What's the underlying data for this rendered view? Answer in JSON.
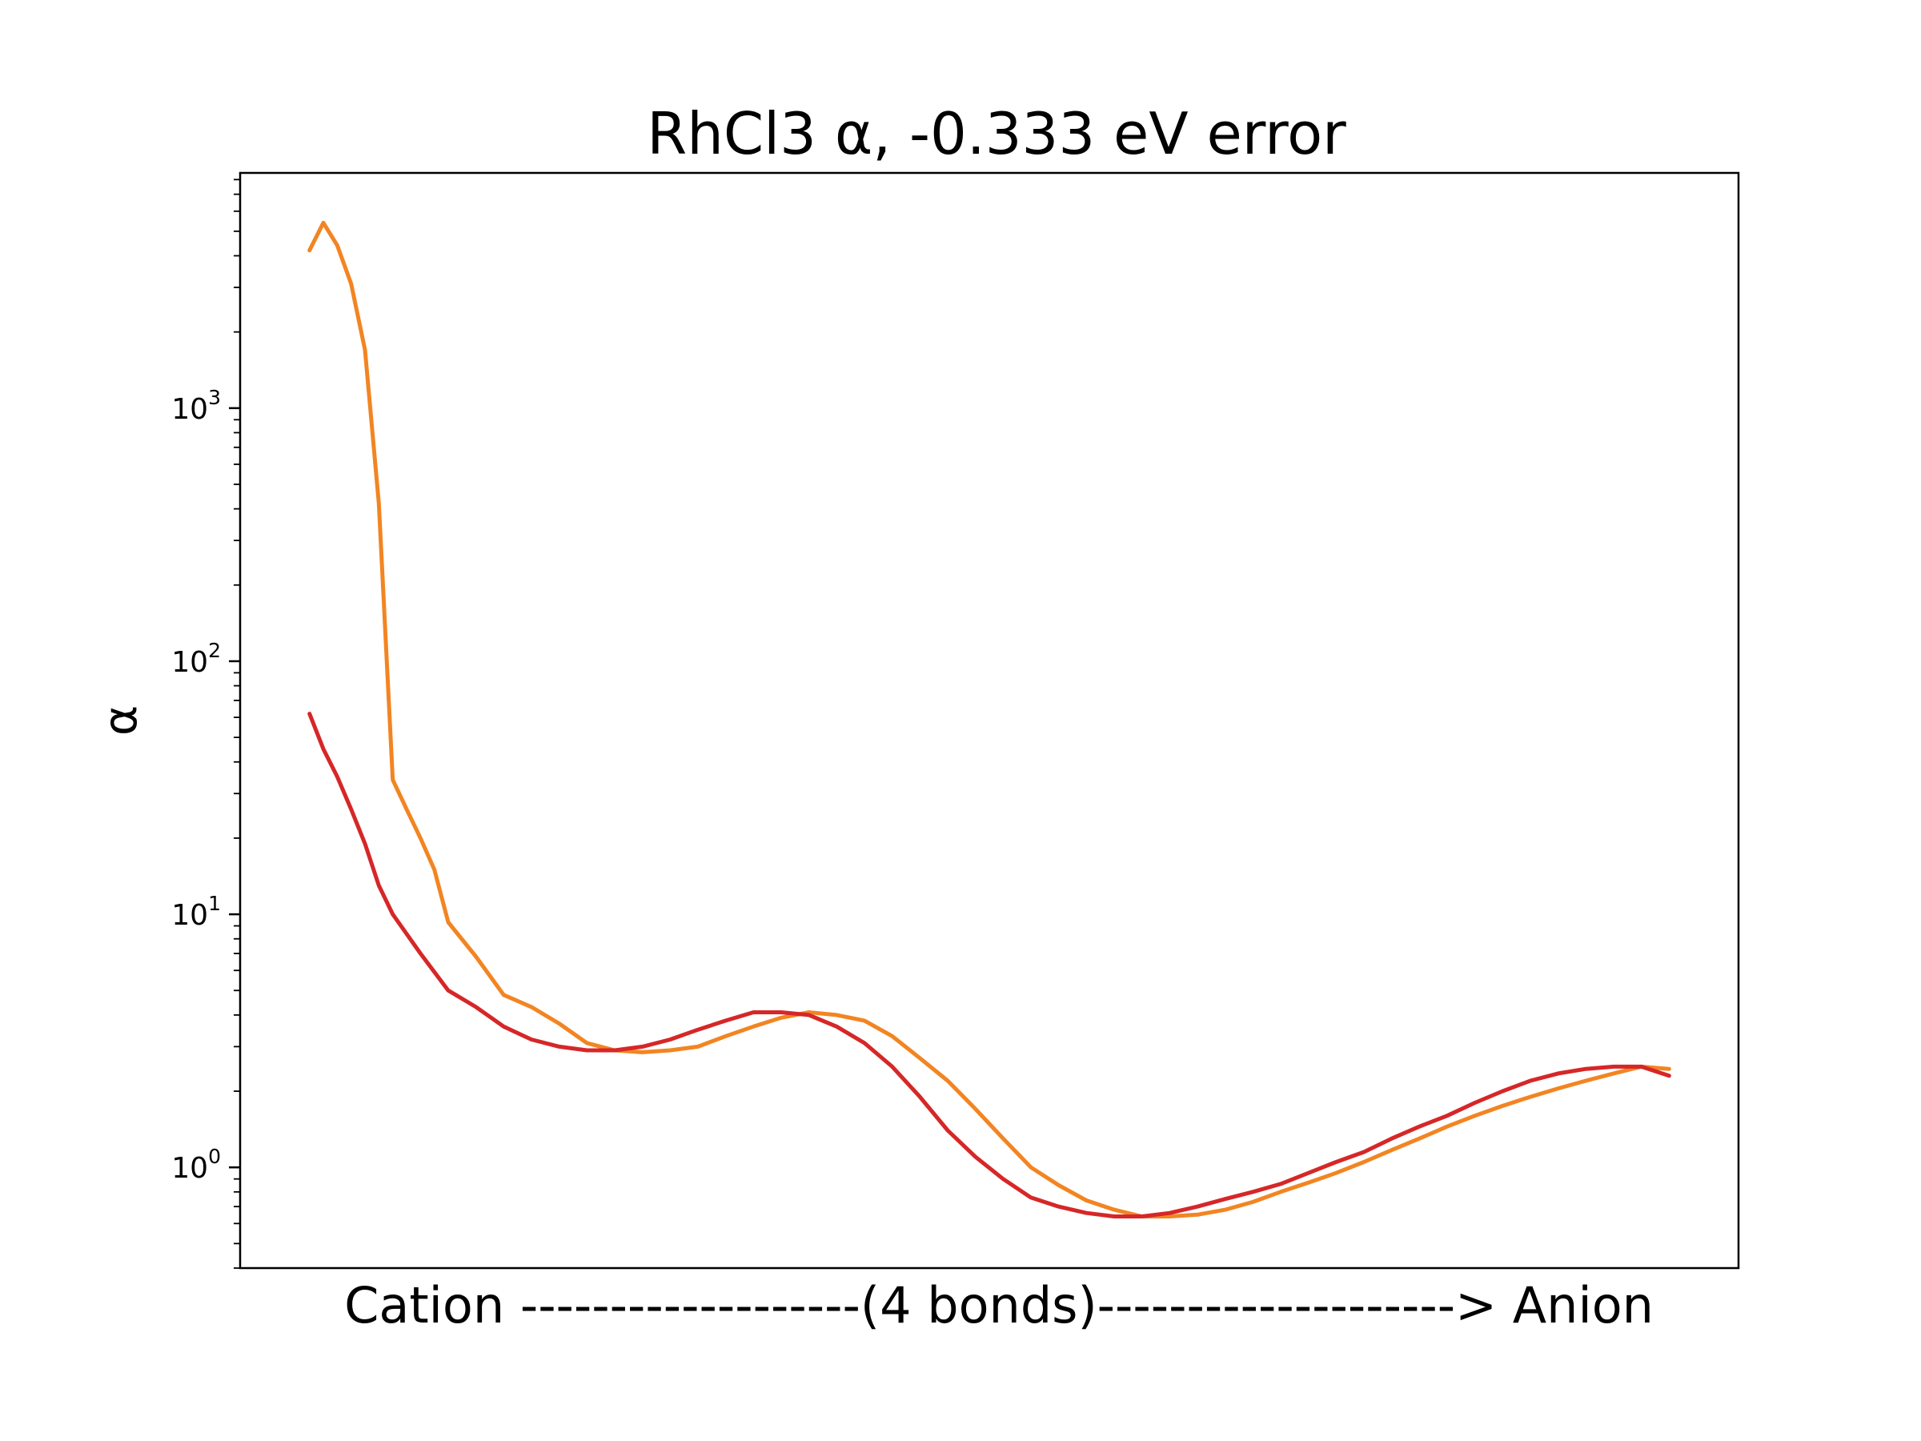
{
  "chart_data": {
    "type": "line",
    "title": "RhCl3 α, -0.333 eV error",
    "xlabel": "Cation -------------------(4 bonds)--------------------> Anion",
    "ylabel": "α",
    "yscale": "log",
    "ylim": [
      0.4,
      8500
    ],
    "xlim": [
      -5,
      103
    ],
    "grid": false,
    "y_ticks": [
      {
        "value": 1,
        "base": "10",
        "exp": "0"
      },
      {
        "value": 10,
        "base": "10",
        "exp": "1"
      },
      {
        "value": 100,
        "base": "10",
        "exp": "2"
      },
      {
        "value": 1000,
        "base": "10",
        "exp": "3"
      }
    ],
    "series": [
      {
        "color": "#f28522",
        "x": [
          0,
          1,
          2,
          3,
          4,
          5,
          6,
          7,
          8,
          9,
          10,
          12,
          14,
          16,
          18,
          20,
          22,
          24,
          26,
          28,
          30,
          32,
          34,
          36,
          38,
          40,
          42,
          44,
          46,
          48,
          50,
          52,
          54,
          56,
          58,
          60,
          62,
          64,
          66,
          68,
          70,
          72,
          74,
          76,
          78,
          80,
          82,
          84,
          86,
          88,
          90,
          92,
          94,
          96,
          98
        ],
        "y": [
          4200,
          5400,
          4400,
          3100,
          1700,
          420,
          34,
          26,
          20,
          15,
          9.3,
          6.8,
          4.8,
          4.3,
          3.7,
          3.1,
          2.9,
          2.85,
          2.9,
          3.0,
          3.3,
          3.6,
          3.9,
          4.1,
          4.0,
          3.8,
          3.3,
          2.7,
          2.2,
          1.7,
          1.3,
          1.0,
          0.85,
          0.74,
          0.68,
          0.64,
          0.64,
          0.65,
          0.68,
          0.73,
          0.8,
          0.87,
          0.95,
          1.05,
          1.17,
          1.3,
          1.45,
          1.6,
          1.75,
          1.9,
          2.05,
          2.2,
          2.35,
          2.5,
          2.45
        ]
      },
      {
        "color": "#d62728",
        "x": [
          0,
          1,
          2,
          3,
          4,
          5,
          6,
          8,
          10,
          12,
          14,
          16,
          18,
          20,
          22,
          24,
          26,
          28,
          30,
          32,
          34,
          36,
          38,
          40,
          42,
          44,
          46,
          48,
          50,
          52,
          54,
          56,
          58,
          60,
          62,
          64,
          66,
          68,
          70,
          72,
          74,
          76,
          78,
          80,
          82,
          84,
          86,
          88,
          90,
          92,
          94,
          96,
          98
        ],
        "y": [
          62,
          45,
          35,
          26,
          19,
          13,
          10,
          7,
          5,
          4.3,
          3.6,
          3.2,
          3.0,
          2.9,
          2.9,
          3.0,
          3.2,
          3.5,
          3.8,
          4.1,
          4.1,
          4.0,
          3.6,
          3.1,
          2.5,
          1.9,
          1.4,
          1.1,
          0.9,
          0.76,
          0.7,
          0.66,
          0.64,
          0.64,
          0.66,
          0.7,
          0.75,
          0.8,
          0.86,
          0.95,
          1.05,
          1.15,
          1.3,
          1.45,
          1.6,
          1.8,
          2.0,
          2.2,
          2.35,
          2.45,
          2.5,
          2.5,
          2.3
        ]
      }
    ]
  }
}
